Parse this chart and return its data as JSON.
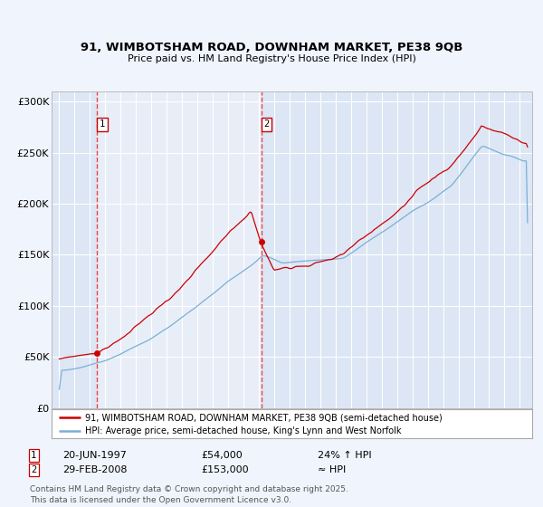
{
  "title_line1": "91, WIMBOTSHAM ROAD, DOWNHAM MARKET, PE38 9QB",
  "title_line2": "Price paid vs. HM Land Registry's House Price Index (HPI)",
  "bg_color": "#f0f4fc",
  "plot_bg_color": "#dce6f5",
  "plot_bg_between": "#e8eef8",
  "grid_color": "#ffffff",
  "hpi_color": "#7ab0d4",
  "price_color": "#cc0000",
  "dashed_color": "#ee3333",
  "sale1_price": 54000,
  "sale2_price": 153000,
  "sale1_date_str": "20-JUN-1997",
  "sale2_date_str": "29-FEB-2008",
  "sale1_hpi_note": "24% ↑ HPI",
  "sale2_hpi_note": "≈ HPI",
  "legend_line1": "91, WIMBOTSHAM ROAD, DOWNHAM MARKET, PE38 9QB (semi-detached house)",
  "legend_line2": "HPI: Average price, semi-detached house, King's Lynn and West Norfolk",
  "footer": "Contains HM Land Registry data © Crown copyright and database right 2025.\nThis data is licensed under the Open Government Licence v3.0.",
  "ylim": [
    0,
    310000
  ],
  "yticks": [
    0,
    50000,
    100000,
    150000,
    200000,
    250000,
    300000
  ],
  "ytick_labels": [
    "£0",
    "£50K",
    "£100K",
    "£150K",
    "£200K",
    "£250K",
    "£300K"
  ],
  "sale1_year": 1997.46,
  "sale2_year": 2008.15
}
